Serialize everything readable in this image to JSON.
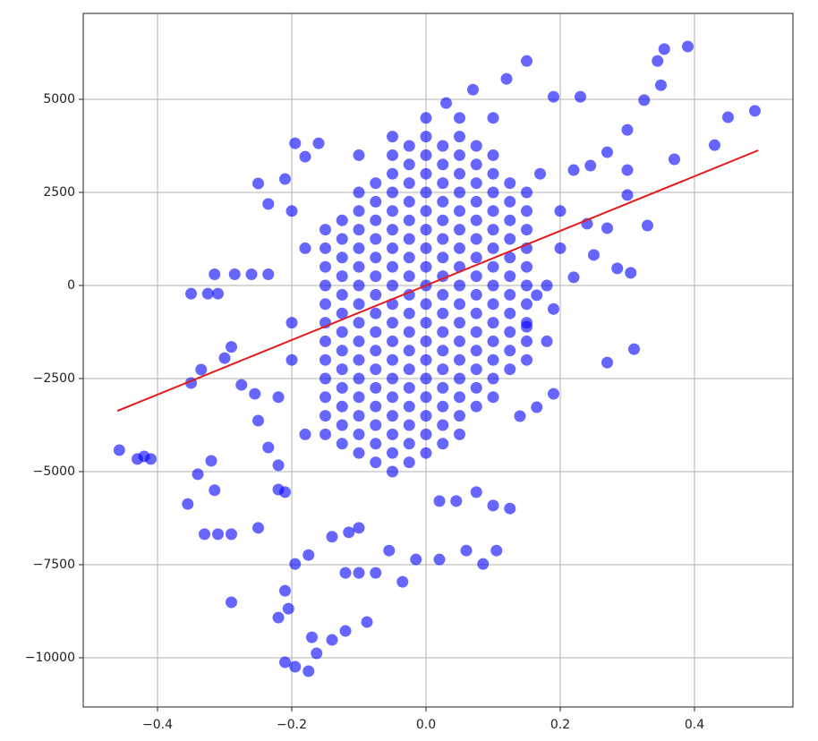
{
  "chart_data": {
    "type": "scatter",
    "color": "#0000ff",
    "opacity": 0.6,
    "grid": true,
    "xlim": [
      -0.5107,
      0.5467
    ],
    "ylim": [
      -11322,
      7308
    ],
    "xticks": [
      {
        "value": -0.4,
        "label": "−0.4"
      },
      {
        "value": -0.2,
        "label": "−0.2"
      },
      {
        "value": 0,
        "label": "0.0"
      },
      0.2,
      0.4
    ],
    "yticks": [
      {
        "value": -10000,
        "label": "−10000"
      },
      {
        "value": -7500,
        "label": "−7500"
      },
      {
        "value": -5000,
        "label": "−5000"
      },
      {
        "value": -2500,
        "label": "−2500"
      },
      0,
      2500,
      5000
    ],
    "x": [
      -0.15,
      -0.15,
      -0.15,
      -0.15,
      -0.15,
      -0.15,
      -0.15,
      -0.15,
      -0.15,
      -0.15,
      -0.15,
      -0.15,
      -0.125,
      -0.125,
      -0.125,
      -0.125,
      -0.125,
      -0.125,
      -0.125,
      -0.125,
      -0.125,
      -0.125,
      -0.125,
      -0.125,
      -0.125,
      -0.1,
      -0.1,
      -0.1,
      -0.1,
      -0.1,
      -0.1,
      -0.1,
      -0.1,
      -0.1,
      -0.1,
      -0.1,
      -0.1,
      -0.1,
      -0.1,
      -0.1,
      -0.075,
      -0.075,
      -0.075,
      -0.075,
      -0.075,
      -0.075,
      -0.075,
      -0.075,
      -0.075,
      -0.075,
      -0.075,
      -0.075,
      -0.075,
      -0.075,
      -0.075,
      -0.075,
      -0.05,
      -0.05,
      -0.05,
      -0.05,
      -0.05,
      -0.05,
      -0.05,
      -0.05,
      -0.05,
      -0.05,
      -0.05,
      -0.05,
      -0.05,
      -0.05,
      -0.05,
      -0.05,
      -0.05,
      -0.05,
      -0.025,
      -0.025,
      -0.025,
      -0.025,
      -0.025,
      -0.025,
      -0.025,
      -0.025,
      -0.025,
      -0.025,
      -0.025,
      -0.025,
      -0.025,
      -0.025,
      -0.025,
      -0.025,
      -0.025,
      -0.025,
      0,
      0,
      0,
      0,
      0,
      0,
      0,
      0,
      0,
      0,
      0,
      0,
      0,
      0,
      0,
      0,
      0,
      0,
      0.025,
      0.025,
      0.025,
      0.025,
      0.025,
      0.025,
      0.025,
      0.025,
      0.025,
      0.025,
      0.025,
      0.025,
      0.025,
      0.025,
      0.025,
      0.025,
      0.025,
      0.05,
      0.05,
      0.05,
      0.05,
      0.05,
      0.05,
      0.05,
      0.05,
      0.05,
      0.05,
      0.05,
      0.05,
      0.05,
      0.05,
      0.05,
      0.05,
      0.05,
      0.075,
      0.075,
      0.075,
      0.075,
      0.075,
      0.075,
      0.075,
      0.075,
      0.075,
      0.075,
      0.075,
      0.075,
      0.075,
      0.075,
      0.075,
      0.1,
      0.1,
      0.1,
      0.1,
      0.1,
      0.1,
      0.1,
      0.1,
      0.1,
      0.1,
      0.1,
      0.1,
      0.1,
      0.1,
      0.125,
      0.125,
      0.125,
      0.125,
      0.125,
      0.125,
      0.125,
      0.125,
      0.125,
      0.125,
      0.125,
      0.15,
      0.15,
      0.15,
      0.15,
      0.15,
      0.15,
      0.15,
      0.15,
      0.15,
      0.15,
      -0.457,
      -0.43,
      -0.42,
      -0.41,
      -0.35,
      -0.335,
      -0.3,
      -0.35,
      -0.325,
      -0.31,
      -0.315,
      -0.285,
      -0.26,
      -0.235,
      -0.29,
      -0.275,
      -0.255,
      -0.25,
      -0.34,
      -0.32,
      -0.315,
      -0.355,
      -0.33,
      -0.31,
      -0.29,
      -0.25,
      -0.29,
      -0.22,
      -0.21,
      -0.205,
      -0.21,
      -0.195,
      -0.175,
      -0.17,
      -0.163,
      -0.14,
      -0.12,
      -0.088,
      -0.195,
      -0.175,
      -0.14,
      -0.115,
      -0.1,
      -0.12,
      -0.1,
      -0.075,
      -0.055,
      -0.035,
      -0.015,
      0.02,
      0.06,
      0.085,
      0.105,
      0.02,
      0.045,
      0.075,
      0.1,
      0.125,
      -0.22,
      -0.21,
      -0.235,
      -0.22,
      -0.195,
      -0.18,
      -0.16,
      -0.235,
      -0.25,
      -0.21,
      0.03,
      0.07,
      0.12,
      0.15,
      0.19,
      0.23,
      0.3,
      0.325,
      0.345,
      0.355,
      0.39,
      0.35,
      0.43,
      0.45,
      0.49,
      0.37,
      0.33,
      0.27,
      0.3,
      0.22,
      0.245,
      0.3,
      0.24,
      0.27,
      0.25,
      0.285,
      0.305,
      0.31,
      0.27,
      0.19,
      0.165,
      0.14,
      0.19,
      0.22,
      0.165,
      0.15,
      -0.2,
      -0.22,
      -0.2,
      -0.18,
      -0.2,
      0.18,
      0.18,
      0.2,
      0.2,
      0.17,
      -0.18,
      0.1,
      0.05,
      -0.1,
      0,
      -0.05
    ],
    "values": [
      -4000,
      -3500,
      -3000,
      -2500,
      -2000,
      -1500,
      -1000,
      -500,
      0,
      500,
      1000,
      1500,
      -4250,
      -3750,
      -3250,
      -2750,
      -2250,
      -1750,
      -1250,
      -750,
      -250,
      250,
      750,
      1250,
      1750,
      -4500,
      -4000,
      -3500,
      -3000,
      -2500,
      -2000,
      -1500,
      -1000,
      -500,
      0,
      500,
      1000,
      1500,
      2000,
      2500,
      -4750,
      -4250,
      -3750,
      -3250,
      -2750,
      -2250,
      -1750,
      -1250,
      -750,
      -250,
      250,
      750,
      1250,
      1750,
      2250,
      2750,
      -5000,
      -4500,
      -4000,
      -3500,
      -3000,
      -2500,
      -2000,
      -1500,
      -1000,
      -500,
      0,
      500,
      1000,
      1500,
      2000,
      2500,
      3000,
      3500,
      -4750,
      -4250,
      -3750,
      -3250,
      -2750,
      -2250,
      -1750,
      -1250,
      -750,
      -250,
      250,
      750,
      1250,
      1750,
      2250,
      2750,
      3250,
      3750,
      -4500,
      -4000,
      -3500,
      -3000,
      -2500,
      -2000,
      -1500,
      -1000,
      -500,
      0,
      500,
      1000,
      1500,
      2000,
      2500,
      3000,
      3500,
      4000,
      -4250,
      -3750,
      -3250,
      -2750,
      -2250,
      -1750,
      -1250,
      -750,
      -250,
      250,
      750,
      1250,
      1750,
      2250,
      2750,
      3250,
      3750,
      -4000,
      -3500,
      -3000,
      -2500,
      -2000,
      -1500,
      -1000,
      -500,
      0,
      500,
      1000,
      1500,
      2000,
      2500,
      3000,
      3500,
      4000,
      -3250,
      -2750,
      -2250,
      -1750,
      -1250,
      -750,
      -250,
      250,
      750,
      1250,
      1750,
      2250,
      2750,
      3250,
      3750,
      -3000,
      -2500,
      -2000,
      -1500,
      -1000,
      -500,
      0,
      500,
      1000,
      1500,
      2000,
      2500,
      3000,
      3500,
      -2250,
      -1750,
      -1250,
      -750,
      -250,
      250,
      750,
      1250,
      1750,
      2250,
      2750,
      -2000,
      -1500,
      -1000,
      -500,
      0,
      500,
      1000,
      1500,
      2000,
      2500,
      -4423,
      -4660,
      -4590,
      -4660,
      -2620,
      -2260,
      -1950,
      -220,
      -220,
      -220,
      300,
      300,
      300,
      300,
      -1650,
      -2670,
      -2910,
      -3630,
      -5070,
      -4710,
      -5500,
      -5870,
      -6680,
      -6680,
      -6680,
      -6510,
      -8510,
      -8920,
      -8200,
      -8680,
      -10120,
      -10240,
      -10360,
      -9450,
      -9880,
      -9520,
      -9280,
      -9040,
      -7480,
      -7240,
      -6750,
      -6630,
      -6510,
      -7720,
      -7720,
      -7720,
      -7120,
      -7960,
      -7360,
      -7360,
      -7120,
      -7480,
      -7120,
      -5790,
      -5790,
      -5550,
      -5910,
      -5990,
      -5480,
      -5550,
      -4350,
      -4830,
      3820,
      3460,
      3820,
      2190,
      2740,
      2860,
      4900,
      5260,
      5550,
      6030,
      5070,
      5070,
      4180,
      4980,
      6030,
      6350,
      6420,
      5380,
      3770,
      4520,
      4690,
      3390,
      1610,
      3580,
      3100,
      3100,
      3220,
      2430,
      1660,
      1540,
      820,
      460,
      340,
      -1710,
      -2070,
      -2910,
      -3270,
      -3510,
      -630,
      220,
      -260,
      -1110,
      -2000,
      -3000,
      -1000,
      1000,
      2000,
      -1500,
      0,
      1000,
      2000,
      3000,
      -4000,
      4500,
      4500,
      3500,
      4500,
      4000
    ],
    "fit_line": {
      "x": [
        -0.46,
        0.495
      ],
      "values": [
        -3370,
        3630
      ],
      "color": "#e41a1c"
    }
  }
}
